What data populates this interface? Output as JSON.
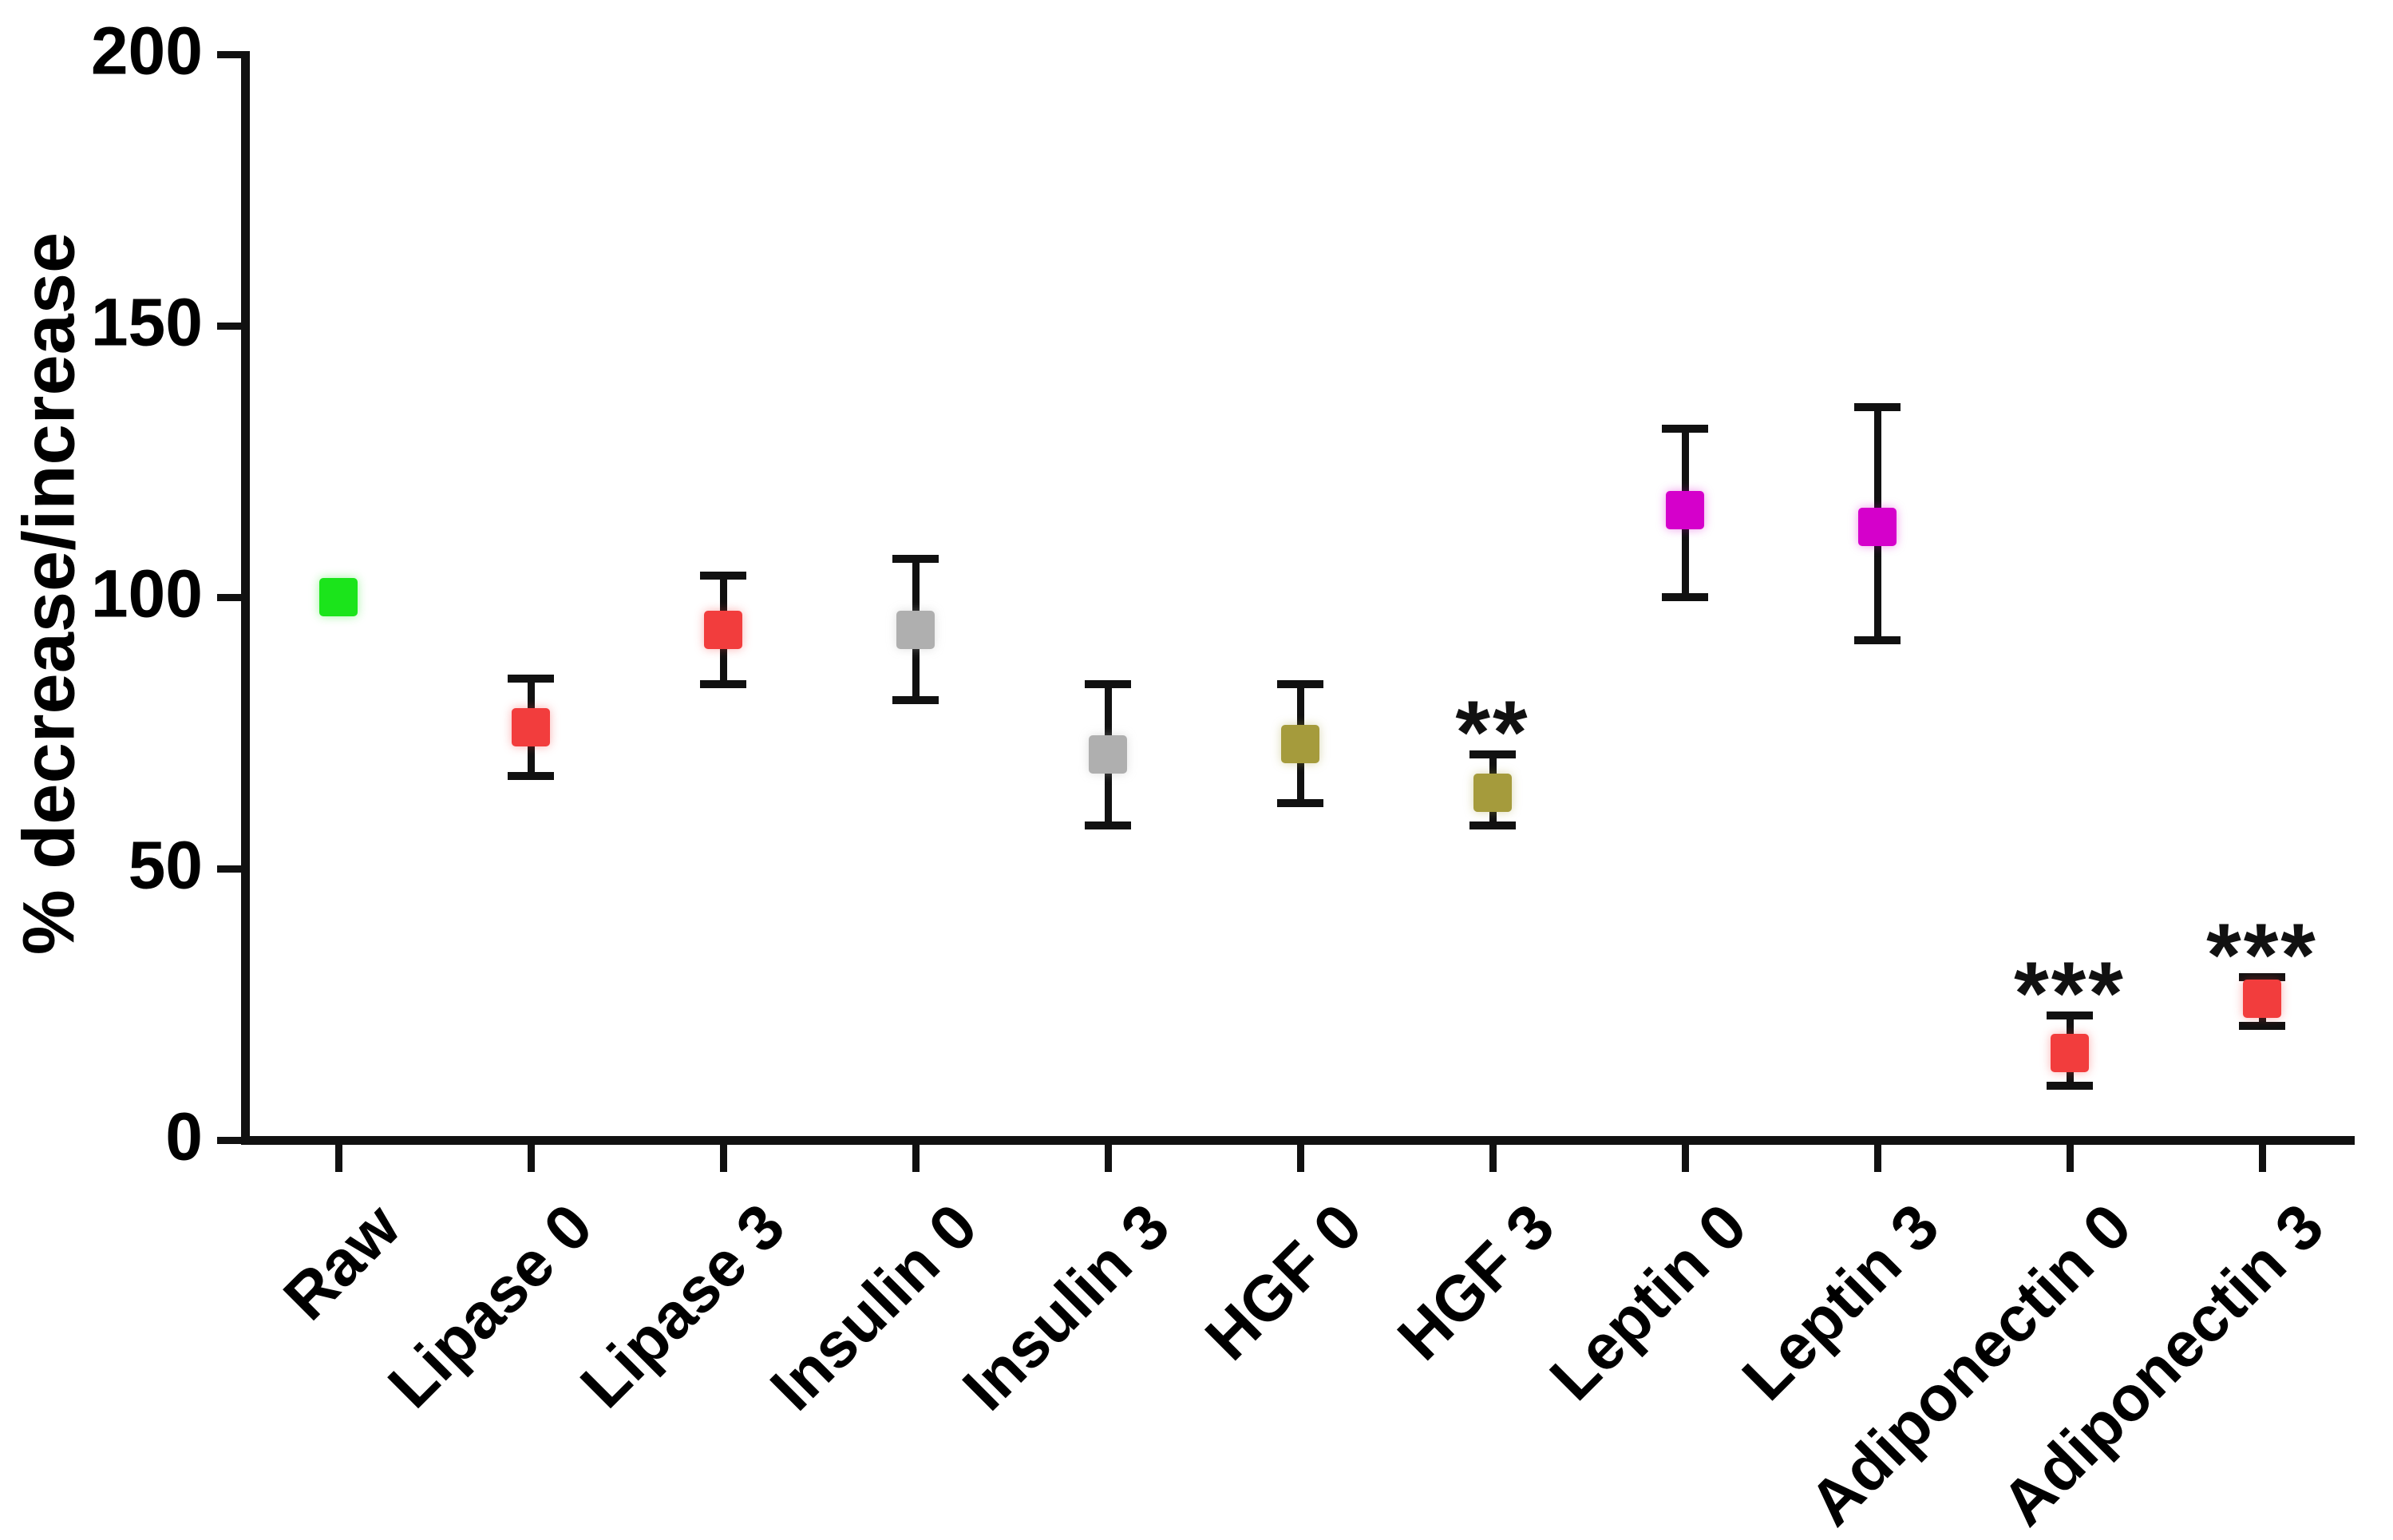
{
  "figure": {
    "background": "#ffffff",
    "axis_color": "#111111",
    "text_color": "#000000"
  },
  "chart_data": {
    "type": "scatter",
    "title": "",
    "xlabel": "",
    "ylabel": "% decrease/increase",
    "ylim": [
      0,
      200
    ],
    "yticks": [
      0,
      50,
      100,
      150,
      200
    ],
    "grid": false,
    "legend_position": "none",
    "marker_shape": "square",
    "error_bars": "range caps",
    "categories": [
      "Raw",
      "Lipase 0",
      "Lipase 3",
      "Insulin 0",
      "Insulin 3",
      "HGF 0",
      "HGF 3",
      "Leptin 0",
      "Leptin 3",
      "Adiponectin 0",
      "Adiponectin 3"
    ],
    "points": [
      {
        "category": "Raw",
        "value": 100,
        "err_low": null,
        "err_high": null,
        "color": "#1BE41B",
        "significance": ""
      },
      {
        "category": "Lipase 0",
        "value": 76,
        "err_low": 67,
        "err_high": 85,
        "color": "#F23D3D",
        "significance": ""
      },
      {
        "category": "Lipase 3",
        "value": 94,
        "err_low": 84,
        "err_high": 104,
        "color": "#F23D3D",
        "significance": ""
      },
      {
        "category": "Insulin 0",
        "value": 94,
        "err_low": 81,
        "err_high": 107,
        "color": "#AFAFAF",
        "significance": ""
      },
      {
        "category": "Insulin 3",
        "value": 71,
        "err_low": 58,
        "err_high": 84,
        "color": "#AFAFAF",
        "significance": ""
      },
      {
        "category": "HGF 0",
        "value": 73,
        "err_low": 62,
        "err_high": 84,
        "color": "#A59B3C",
        "significance": ""
      },
      {
        "category": "HGF 3",
        "value": 64,
        "err_low": 58,
        "err_high": 71,
        "color": "#A59B3C",
        "significance": "**"
      },
      {
        "category": "Leptin 0",
        "value": 116,
        "err_low": 100,
        "err_high": 131,
        "color": "#D500CB",
        "significance": ""
      },
      {
        "category": "Leptin 3",
        "value": 113,
        "err_low": 92,
        "err_high": 135,
        "color": "#D500CB",
        "significance": ""
      },
      {
        "category": "Adiponectin 0",
        "value": 16,
        "err_low": 10,
        "err_high": 23,
        "color": "#F23D3D",
        "significance": "***"
      },
      {
        "category": "Adiponectin 3",
        "value": 26,
        "err_low": 21,
        "err_high": 30,
        "color": "#F23D3D",
        "significance": "***"
      }
    ]
  }
}
